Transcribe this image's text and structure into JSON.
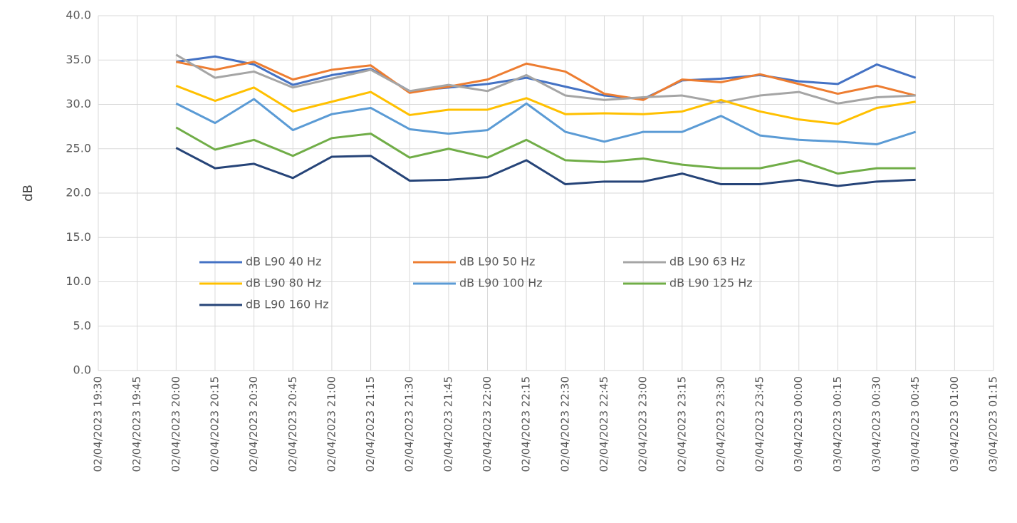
{
  "chart_data": {
    "type": "line",
    "y_label": "dB",
    "categories": [
      "02/04/2023 19:30",
      "02/04/2023 19:45",
      "02/04/2023 20:00",
      "02/04/2023 20:15",
      "02/04/2023 20:30",
      "02/04/2023 20:45",
      "02/04/2023 21:00",
      "02/04/2023 21:15",
      "02/04/2023 21:30",
      "02/04/2023 21:45",
      "02/04/2023 22:00",
      "02/04/2023 22:15",
      "02/04/2023 22:30",
      "02/04/2023 22:45",
      "02/04/2023 23:00",
      "02/04/2023 23:15",
      "02/04/2023 23:30",
      "02/04/2023 23:45",
      "03/04/2023 00:00",
      "03/04/2023 00:15",
      "03/04/2023 00:30",
      "03/04/2023 00:45",
      "03/04/2023 01:00",
      "03/04/2023 01:15"
    ],
    "series": [
      {
        "name": "dB L90 40 Hz",
        "color": "#4472c4",
        "values": [
          null,
          null,
          34.8,
          35.4,
          34.5,
          32.2,
          33.3,
          34.0,
          31.5,
          31.9,
          32.3,
          33.0,
          32.0,
          31.0,
          30.6,
          32.7,
          32.9,
          33.3,
          32.6,
          32.3,
          34.5,
          33.0,
          null,
          null
        ]
      },
      {
        "name": "dB L90 50 Hz",
        "color": "#ed7d31",
        "values": [
          null,
          null,
          34.8,
          33.9,
          34.8,
          32.8,
          33.9,
          34.4,
          31.3,
          32.0,
          32.8,
          34.6,
          33.7,
          31.2,
          30.5,
          32.8,
          32.5,
          33.4,
          32.3,
          31.2,
          32.1,
          31.0,
          null,
          null
        ]
      },
      {
        "name": "dB L90 63 Hz",
        "color": "#a5a5a5",
        "values": [
          null,
          null,
          35.6,
          33.0,
          33.7,
          31.9,
          32.9,
          33.9,
          31.5,
          32.2,
          31.5,
          33.3,
          31.0,
          30.5,
          30.8,
          31.0,
          30.2,
          31.0,
          31.4,
          30.1,
          30.8,
          31.0,
          null,
          null
        ]
      },
      {
        "name": "dB L90 80 Hz",
        "color": "#ffc000",
        "values": [
          null,
          null,
          32.1,
          30.4,
          31.9,
          29.2,
          30.3,
          31.4,
          28.8,
          29.4,
          29.4,
          30.7,
          28.9,
          29.0,
          28.9,
          29.2,
          30.5,
          29.2,
          28.3,
          27.8,
          29.6,
          30.3,
          null,
          null
        ]
      },
      {
        "name": "dB L90 100 Hz",
        "color": "#5b9bd5",
        "values": [
          null,
          null,
          30.1,
          27.9,
          30.6,
          27.1,
          28.9,
          29.6,
          27.2,
          26.7,
          27.1,
          30.1,
          26.9,
          25.8,
          26.9,
          26.9,
          28.7,
          26.5,
          26.0,
          25.8,
          25.5,
          26.9,
          null,
          null
        ]
      },
      {
        "name": "dB L90 125 Hz",
        "color": "#70ad47",
        "values": [
          null,
          null,
          27.4,
          24.9,
          26.0,
          24.2,
          26.2,
          26.7,
          24.0,
          25.0,
          24.0,
          26.0,
          23.7,
          23.5,
          23.9,
          23.2,
          22.8,
          22.8,
          23.7,
          22.2,
          22.8,
          22.8,
          null,
          null
        ]
      },
      {
        "name": "dB L90 160 Hz",
        "color": "#264478",
        "values": [
          null,
          null,
          25.1,
          22.8,
          23.3,
          21.7,
          24.1,
          24.2,
          21.4,
          21.5,
          21.8,
          23.7,
          21.0,
          21.3,
          21.3,
          22.2,
          21.0,
          21.0,
          21.5,
          20.8,
          21.3,
          21.5,
          null,
          null
        ]
      }
    ],
    "ylim": [
      0,
      40
    ],
    "yticks": [
      {
        "value": 0,
        "label": "0.0"
      },
      {
        "value": 5,
        "label": "5.0"
      },
      {
        "value": 10,
        "label": "10.0"
      },
      {
        "value": 15,
        "label": "15.0"
      },
      {
        "value": 20,
        "label": "20.0"
      },
      {
        "value": 25,
        "label": "25.0"
      },
      {
        "value": 30,
        "label": "30.0"
      },
      {
        "value": 35,
        "label": "35.0"
      },
      {
        "value": 40,
        "label": "40.0"
      }
    ],
    "grid": true
  }
}
